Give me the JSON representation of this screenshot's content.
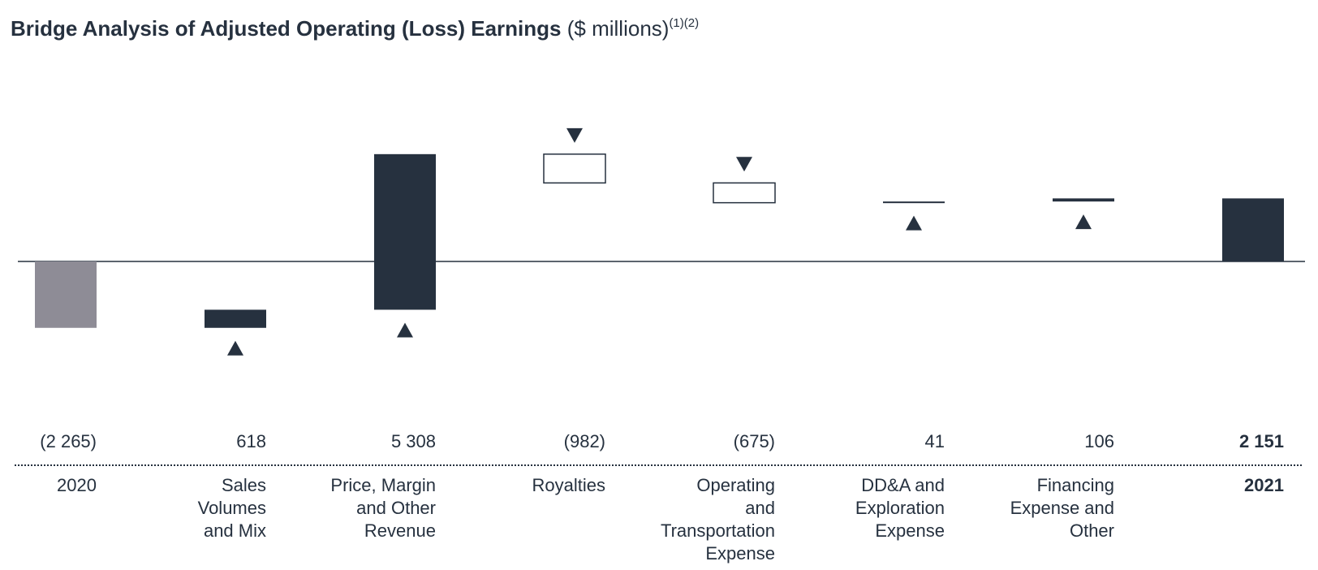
{
  "chart_data": {
    "type": "bar",
    "subtype": "waterfall",
    "title": "Bridge Analysis of Adjusted Operating (Loss) Earnings",
    "unit_label": "($ millions)",
    "footnote_marks": "(1)(2)",
    "categories": [
      "2020",
      "Sales Volumes and Mix",
      "Price, Margin and Other Revenue",
      "Royalties",
      "Operating and Transportation Expense",
      "DD&A and Exploration Expense",
      "Financing Expense and Other",
      "2021"
    ],
    "category_lines": [
      [
        "2020"
      ],
      [
        "Sales",
        "Volumes",
        "and Mix"
      ],
      [
        "Price, Margin",
        "and Other",
        "Revenue"
      ],
      [
        "Royalties"
      ],
      [
        "Operating",
        "and",
        "Transportation",
        "Expense"
      ],
      [
        "DD&A and",
        "Exploration",
        "Expense"
      ],
      [
        "Financing",
        "Expense and",
        "Other"
      ],
      [
        "2021"
      ]
    ],
    "values": [
      -2265,
      618,
      5308,
      -982,
      -675,
      41,
      106,
      2151
    ],
    "value_labels": [
      "(2 265)",
      "618",
      "5 308",
      "(982)",
      "(675)",
      "41",
      "106",
      "2 151"
    ],
    "kinds": [
      "start",
      "increase",
      "increase",
      "decrease",
      "decrease",
      "increase",
      "increase",
      "end"
    ],
    "arrows": [
      "",
      "up",
      "up",
      "down",
      "down",
      "up",
      "up",
      ""
    ],
    "bold": [
      false,
      false,
      false,
      false,
      false,
      false,
      false,
      true
    ],
    "ylim": [
      -3200,
      4800
    ],
    "grid": false,
    "legend": "none",
    "colors": {
      "start": "#8e8c96",
      "increase": "#26313f",
      "decrease": "#ffffff",
      "outline": "#26313f",
      "end": "#26313f",
      "text": "#26313f"
    }
  }
}
